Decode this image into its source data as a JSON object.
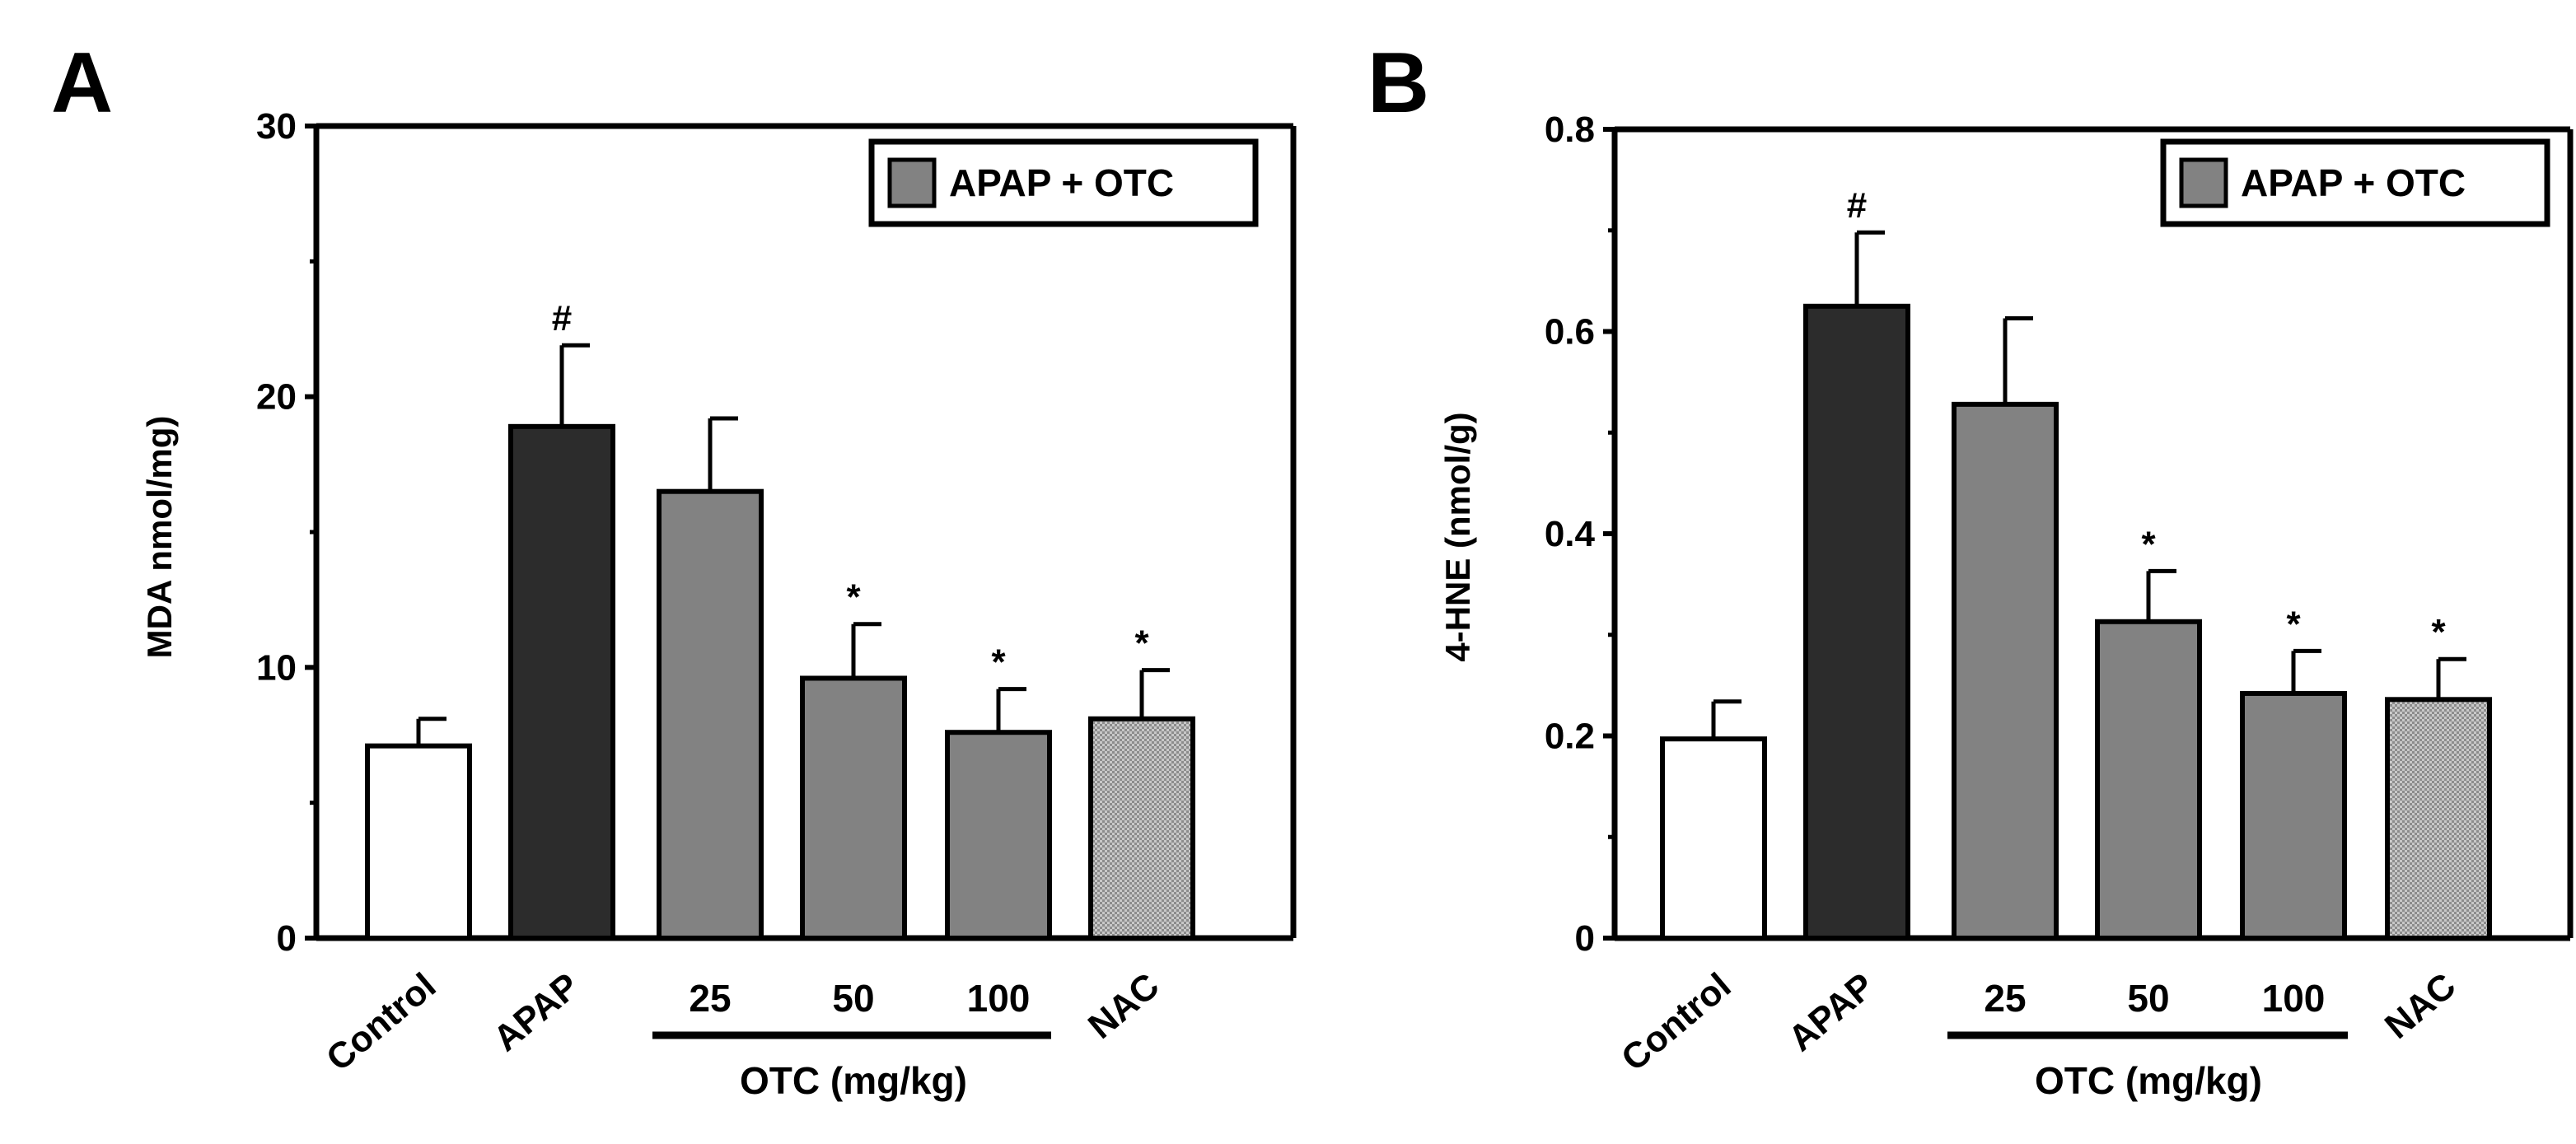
{
  "colors": {
    "control": "#ffffff",
    "apap": "#2c2c2c",
    "otc": "#828282",
    "nac": "#b4b4b4",
    "stroke": "#000000"
  },
  "chart_data": [
    {
      "type": "bar",
      "panel_label": "A",
      "ylabel": "MDA nmol/mg)",
      "ylim": [
        0,
        30
      ],
      "yticks": [
        0,
        10,
        20,
        30
      ],
      "ytick_labels": [
        "0",
        "10",
        "20",
        "30"
      ],
      "categories": [
        "Control",
        "APAP",
        "25",
        "50",
        "100",
        "NAC"
      ],
      "groups": [
        "control",
        "apap",
        "otc",
        "otc",
        "otc",
        "nac"
      ],
      "values": [
        7.1,
        18.9,
        16.5,
        9.6,
        7.6,
        8.1
      ],
      "errors": [
        1.0,
        3.0,
        2.7,
        2.0,
        1.6,
        1.8
      ],
      "annotations": [
        "",
        "#",
        "",
        "*",
        "*",
        "*"
      ],
      "legend": {
        "label": "APAP + OTC",
        "position": "top-right"
      },
      "group_label": "OTC (mg/kg)",
      "x_tick_labels": [
        "Control",
        "APAP",
        "25",
        "50",
        "100",
        "NAC"
      ]
    },
    {
      "type": "bar",
      "panel_label": "B",
      "ylabel": "4-HNE (nmol/g)",
      "ylim": [
        0,
        0.8
      ],
      "yticks": [
        0,
        0.2,
        0.4,
        0.6,
        0.8
      ],
      "ytick_labels": [
        "0",
        "0.2",
        "0.4",
        "0.6",
        "0.8"
      ],
      "categories": [
        "Control",
        "APAP",
        "25",
        "50",
        "100",
        "NAC"
      ],
      "groups": [
        "control",
        "apap",
        "otc",
        "otc",
        "otc",
        "nac"
      ],
      "values": [
        0.197,
        0.625,
        0.528,
        0.313,
        0.242,
        0.236
      ],
      "errors": [
        0.037,
        0.073,
        0.085,
        0.05,
        0.042,
        0.04
      ],
      "annotations": [
        "",
        "#",
        "",
        "*",
        "*",
        "*"
      ],
      "legend": {
        "label": "APAP + OTC",
        "position": "top-right"
      },
      "group_label": "OTC (mg/kg)",
      "x_tick_labels": [
        "Control",
        "APAP",
        "25",
        "50",
        "100",
        "NAC"
      ]
    }
  ]
}
